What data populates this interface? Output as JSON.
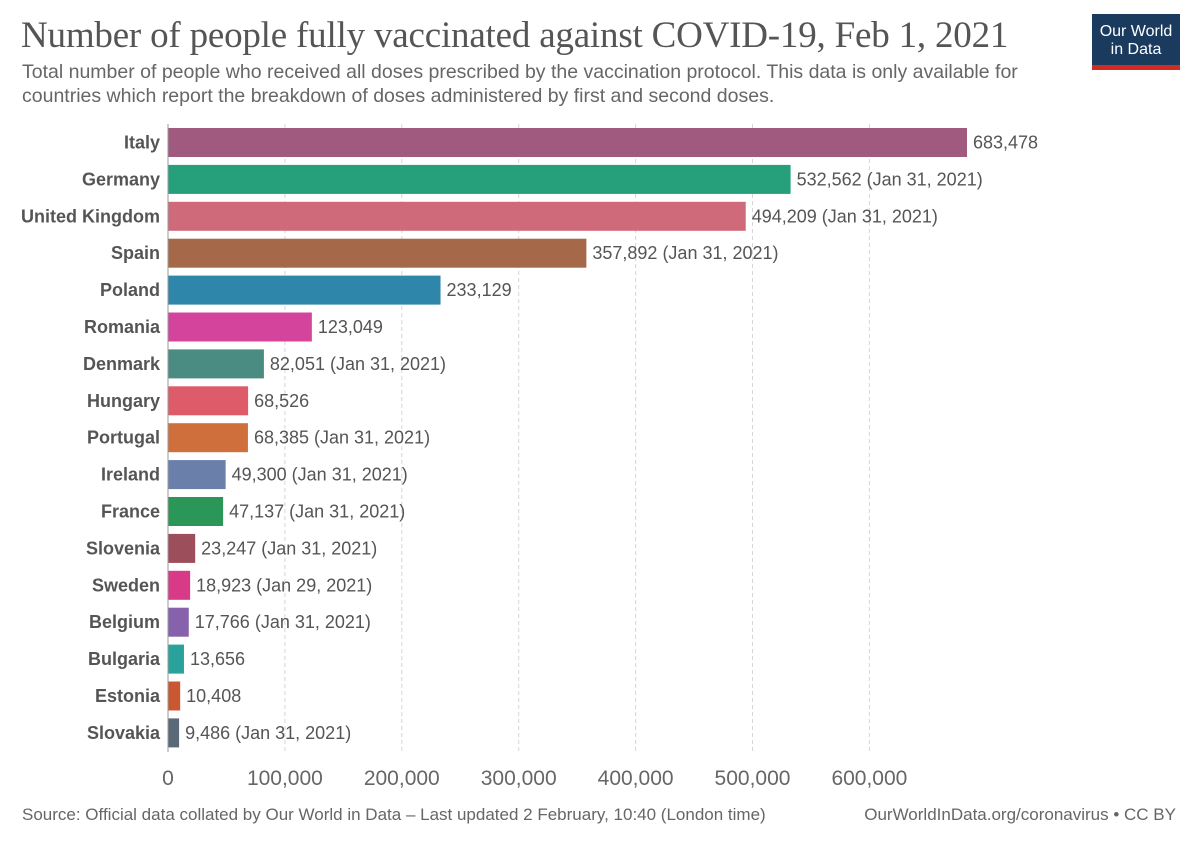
{
  "header": {
    "title": "Number of people fully vaccinated against COVID-19, Feb 1, 2021",
    "subtitle": "Total number of people who received all doses prescribed by the vaccination protocol. This data is only available for countries which report the breakdown of doses administered by first and second doses.",
    "logo_line1": "Our World",
    "logo_line2": "in Data"
  },
  "footer": {
    "source": "Source: Official data collated by Our World in Data – Last updated 2 February, 10:40 (London time)",
    "credit": "OurWorldInData.org/coronavirus • CC BY"
  },
  "colors": {
    "logo_bg": "#1a3a5e",
    "logo_accent": "#d42b21"
  },
  "chart_data": {
    "type": "bar",
    "orientation": "horizontal",
    "categories": [
      "Italy",
      "Germany",
      "United Kingdom",
      "Spain",
      "Poland",
      "Romania",
      "Denmark",
      "Hungary",
      "Portugal",
      "Ireland",
      "France",
      "Slovenia",
      "Sweden",
      "Belgium",
      "Bulgaria",
      "Estonia",
      "Slovakia"
    ],
    "values": [
      683478,
      532562,
      494209,
      357892,
      233129,
      123049,
      82051,
      68526,
      68385,
      49300,
      47137,
      23247,
      18923,
      17766,
      13656,
      10408,
      9486
    ],
    "value_labels": [
      "683,478",
      "532,562 (Jan 31, 2021)",
      "494,209 (Jan 31, 2021)",
      "357,892 (Jan 31, 2021)",
      "233,129",
      "123,049",
      "82,051 (Jan 31, 2021)",
      "68,526",
      "68,385 (Jan 31, 2021)",
      "49,300 (Jan 31, 2021)",
      "47,137 (Jan 31, 2021)",
      "23,247 (Jan 31, 2021)",
      "18,923 (Jan 29, 2021)",
      "17,766 (Jan 31, 2021)",
      "13,656",
      "10,408",
      "9,486 (Jan 31, 2021)"
    ],
    "colors": [
      "#a05a7f",
      "#25a07a",
      "#cf6a7b",
      "#a5694a",
      "#2f86ab",
      "#d4449c",
      "#4a8c82",
      "#de5b69",
      "#cf6f3b",
      "#6a80ab",
      "#2a9658",
      "#9c4e5a",
      "#d93a87",
      "#8662ac",
      "#28a29a",
      "#c95731",
      "#5a6877"
    ],
    "xticks": [
      "0",
      "100,000",
      "200,000",
      "300,000",
      "400,000",
      "500,000",
      "600,000"
    ],
    "xtick_values": [
      0,
      100000,
      200000,
      300000,
      400000,
      500000,
      600000
    ],
    "xlim": [
      0,
      683478
    ],
    "grid": "vertical-dashed",
    "title": "Number of people fully vaccinated against COVID-19, Feb 1, 2021",
    "xlabel": "",
    "ylabel": ""
  }
}
